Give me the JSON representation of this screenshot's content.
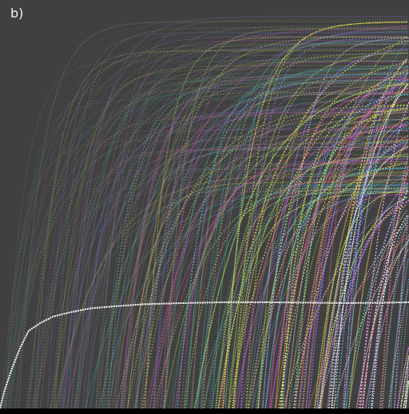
{
  "panel_label": "b)",
  "colors": {
    "background": "#404040",
    "bottom_band": "#000000",
    "mean_curve": "#ffffff",
    "palette": [
      "#5a5a5a",
      "#6b6b3c",
      "#4c4c7a",
      "#7a4c7a",
      "#3f6f6f",
      "#5f7a5f",
      "#8a8a5c",
      "#6c6ca8",
      "#b05cb0",
      "#4fa0a0",
      "#9ab05c",
      "#c8c85a",
      "#ff4fbf",
      "#4fe0e0",
      "#c0ff60",
      "#ffe04f",
      "#9f7bff",
      "#ff7070",
      "#ffffff",
      "#ffa0ff",
      "#50c8ff",
      "#c8ff9a",
      "#e0e0e0",
      "#c0c0c0"
    ]
  },
  "chart_data": {
    "type": "line",
    "title": "",
    "xlabel": "",
    "ylabel": "",
    "xlim": [
      0,
      1
    ],
    "ylim": [
      0,
      1
    ],
    "grid": false,
    "legend": "none",
    "axes_visible": false,
    "bundle": {
      "description_of_encoding": "",
      "count": 340,
      "start_x_range": [
        0.0,
        1.3
      ],
      "plateau_y_range": [
        0.53,
        0.96
      ],
      "steepness_range": [
        6,
        22
      ]
    },
    "mean_curve": {
      "x": [
        0.0,
        0.01,
        0.02,
        0.03,
        0.05,
        0.07,
        0.1,
        0.13,
        0.17,
        0.22,
        0.28,
        0.35,
        0.45,
        0.55,
        0.65,
        0.75,
        0.85,
        0.95,
        1.0
      ],
      "y": [
        0.0,
        0.04,
        0.07,
        0.1,
        0.15,
        0.19,
        0.21,
        0.225,
        0.235,
        0.245,
        0.25,
        0.255,
        0.258,
        0.26,
        0.26,
        0.259,
        0.258,
        0.259,
        0.26
      ]
    }
  }
}
